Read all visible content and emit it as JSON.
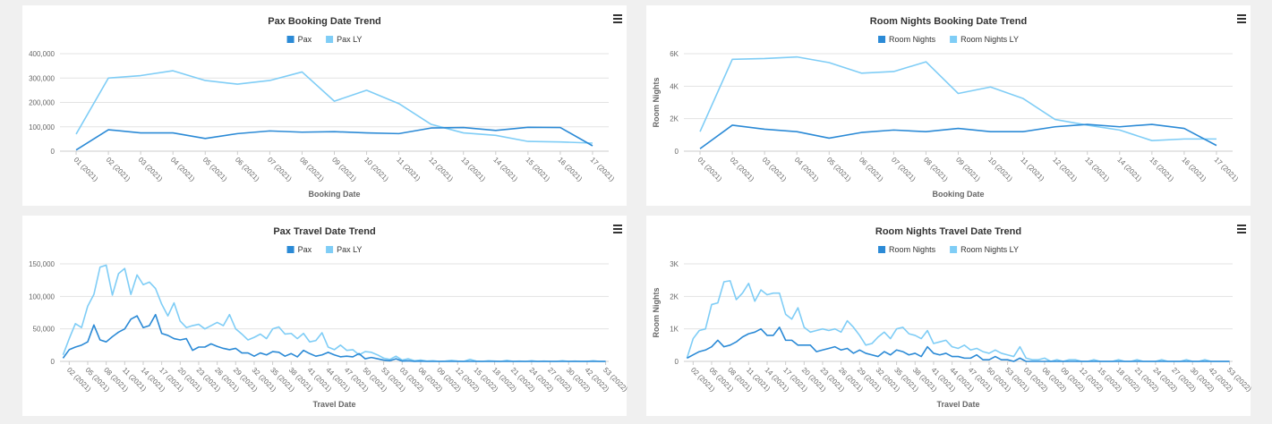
{
  "chart_data": [
    {
      "type": "line",
      "title": "Pax Booking Date Trend",
      "xlabel": "Booking Date",
      "categories": [
        "01 (2021)",
        "02 (2021)",
        "03 (2021)",
        "04 (2021)",
        "05 (2021)",
        "06 (2021)",
        "07 (2021)",
        "08 (2021)",
        "09 (2021)",
        "10 (2021)",
        "11 (2021)",
        "12 (2021)",
        "13 (2021)",
        "14 (2021)",
        "15 (2021)",
        "16 (2021)",
        "17 (2021)"
      ],
      "series": [
        {
          "name": "Pax",
          "color": "#2b8ad6",
          "values": [
            5000,
            88000,
            75000,
            75000,
            52000,
            72000,
            83000,
            78000,
            80000,
            75000,
            72000,
            95000,
            97000,
            85000,
            98000,
            97000,
            22000
          ]
        },
        {
          "name": "Pax LY",
          "color": "#7fcdf6",
          "values": [
            70000,
            300000,
            310000,
            330000,
            290000,
            275000,
            290000,
            325000,
            205000,
            250000,
            195000,
            110000,
            75000,
            65000,
            40000,
            38000,
            33000
          ]
        }
      ],
      "ylim": [
        0,
        400000
      ],
      "yticks": [
        0,
        {
          "value": 100000,
          "label": "100,000"
        },
        {
          "value": 200000,
          "label": "200,000"
        },
        {
          "value": 300000,
          "label": "300,000"
        },
        {
          "value": 400000,
          "label": "400,000"
        }
      ]
    },
    {
      "type": "line",
      "title": "Room Nights Booking Date Trend",
      "xlabel": "Booking Date",
      "ylabel": "Room Nights",
      "categories": [
        "01 (2021)",
        "02 (2021)",
        "03 (2021)",
        "04 (2021)",
        "05 (2021)",
        "06 (2021)",
        "07 (2021)",
        "08 (2021)",
        "09 (2021)",
        "10 (2021)",
        "11 (2021)",
        "12 (2021)",
        "13 (2021)",
        "14 (2021)",
        "15 (2021)",
        "16 (2021)",
        "17 (2021)"
      ],
      "series": [
        {
          "name": "Room Nights",
          "color": "#2b8ad6",
          "values": [
            150,
            1600,
            1350,
            1200,
            800,
            1150,
            1300,
            1200,
            1400,
            1200,
            1200,
            1500,
            1650,
            1500,
            1650,
            1400,
            350
          ]
        },
        {
          "name": "Room Nights LY",
          "color": "#7fcdf6",
          "values": [
            1200,
            5650,
            5700,
            5800,
            5450,
            4800,
            4900,
            5500,
            3550,
            3950,
            3250,
            1950,
            1600,
            1300,
            650,
            750,
            750
          ]
        }
      ],
      "ylim": [
        0,
        6000
      ],
      "yticks": [
        0,
        {
          "value": 2000,
          "label": "2K"
        },
        {
          "value": 4000,
          "label": "4K"
        },
        {
          "value": 6000,
          "label": "6K"
        }
      ]
    },
    {
      "type": "line",
      "title": "Pax Travel Date Trend",
      "xlabel": "Travel Date",
      "categories": [
        null,
        "02 (2021)",
        null,
        null,
        "05 (2021)",
        null,
        null,
        "08 (2021)",
        null,
        null,
        "11 (2021)",
        null,
        null,
        "14 (2021)",
        null,
        null,
        "17 (2021)",
        null,
        null,
        "20 (2021)",
        null,
        null,
        "23 (2021)",
        null,
        null,
        "26 (2021)",
        null,
        null,
        "29 (2021)",
        null,
        null,
        "32 (2021)",
        null,
        null,
        "35 (2021)",
        null,
        null,
        "38 (2021)",
        null,
        null,
        "41 (2021)",
        null,
        null,
        "44 (2021)",
        null,
        null,
        "47 (2021)",
        null,
        null,
        "50 (2021)",
        null,
        null,
        "53 (2021)",
        null,
        null,
        "03 (2022)",
        null,
        null,
        "06 (2022)",
        null,
        null,
        "09 (2022)",
        null,
        null,
        "12 (2022)",
        null,
        null,
        "15 (2022)",
        null,
        null,
        "18 (2022)",
        null,
        null,
        "21 (2022)",
        null,
        null,
        "24 (2022)",
        null,
        null,
        "27 (2022)",
        null,
        null,
        "30 (2022)",
        null,
        null,
        "42 (2022)",
        null,
        null,
        "53 (2022)"
      ],
      "series": [
        {
          "name": "Pax",
          "color": "#2b8ad6",
          "values": [
            5000,
            18000,
            22000,
            25000,
            30000,
            56000,
            33000,
            30000,
            38000,
            45000,
            50000,
            65000,
            70000,
            52000,
            55000,
            72000,
            43000,
            40000,
            35000,
            33000,
            35000,
            17000,
            22000,
            22000,
            27000,
            23000,
            20000,
            18000,
            20000,
            13000,
            13000,
            8000,
            13000,
            10000,
            15000,
            14000,
            8000,
            12000,
            7000,
            17000,
            12000,
            8000,
            10000,
            14000,
            10000,
            7000,
            8000,
            7000,
            12000,
            4000,
            6000,
            4000,
            2000,
            1000,
            4000,
            500,
            1000,
            0,
            500,
            0,
            0,
            0,
            0,
            0,
            0,
            0,
            0,
            0,
            0,
            0,
            0,
            0,
            0,
            0,
            0,
            0,
            0,
            0,
            0,
            0,
            0,
            0,
            0,
            0,
            0,
            0,
            0,
            0,
            0
          ]
        },
        {
          "name": "Pax LY",
          "color": "#7fcdf6",
          "values": [
            10000,
            35000,
            58000,
            52000,
            85000,
            103000,
            145000,
            148000,
            102000,
            135000,
            143000,
            103000,
            133000,
            118000,
            122000,
            112000,
            88000,
            70000,
            90000,
            62000,
            52000,
            55000,
            57000,
            50000,
            55000,
            60000,
            55000,
            72000,
            50000,
            42000,
            33000,
            37000,
            42000,
            35000,
            50000,
            53000,
            42000,
            43000,
            35000,
            43000,
            30000,
            32000,
            44000,
            22000,
            18000,
            25000,
            17000,
            18000,
            10000,
            15000,
            14000,
            10000,
            5000,
            3000,
            8000,
            2000,
            4000,
            1000,
            2000,
            500,
            1000,
            0,
            500,
            1500,
            500,
            0,
            3000,
            500,
            0,
            1000,
            500,
            0,
            1500,
            0,
            500,
            0,
            1000,
            0,
            500,
            0,
            0,
            1000,
            0,
            500,
            0,
            0,
            1000,
            0,
            0
          ]
        }
      ],
      "ylim": [
        0,
        150000
      ],
      "yticks": [
        0,
        {
          "value": 50000,
          "label": "50,000"
        },
        {
          "value": 100000,
          "label": "100,000"
        },
        {
          "value": 150000,
          "label": "150,000"
        }
      ]
    },
    {
      "type": "line",
      "title": "Room Nights Travel Date Trend",
      "xlabel": "Travel Date",
      "ylabel": "Room Nights",
      "categories": [
        null,
        "02 (2021)",
        null,
        null,
        "05 (2021)",
        null,
        null,
        "08 (2021)",
        null,
        null,
        "11 (2021)",
        null,
        null,
        "14 (2021)",
        null,
        null,
        "17 (2021)",
        null,
        null,
        "20 (2021)",
        null,
        null,
        "23 (2021)",
        null,
        null,
        "26 (2021)",
        null,
        null,
        "29 (2021)",
        null,
        null,
        "32 (2021)",
        null,
        null,
        "35 (2021)",
        null,
        null,
        "38 (2021)",
        null,
        null,
        "41 (2021)",
        null,
        null,
        "44 (2021)",
        null,
        null,
        "47 (2021)",
        null,
        null,
        "50 (2021)",
        null,
        null,
        "53 (2021)",
        null,
        null,
        "03 (2022)",
        null,
        null,
        "06 (2022)",
        null,
        null,
        "09 (2022)",
        null,
        null,
        "12 (2022)",
        null,
        null,
        "15 (2022)",
        null,
        null,
        "18 (2022)",
        null,
        null,
        "21 (2022)",
        null,
        null,
        "24 (2022)",
        null,
        null,
        "27 (2022)",
        null,
        null,
        "30 (2022)",
        null,
        null,
        "42 (2022)",
        null,
        null,
        "53 (2022)"
      ],
      "series": [
        {
          "name": "Room Nights",
          "color": "#2b8ad6",
          "values": [
            100,
            200,
            300,
            350,
            450,
            650,
            450,
            500,
            600,
            750,
            850,
            900,
            1000,
            800,
            800,
            1050,
            650,
            650,
            500,
            500,
            500,
            300,
            350,
            400,
            450,
            350,
            400,
            250,
            350,
            250,
            200,
            150,
            300,
            200,
            350,
            300,
            200,
            250,
            150,
            450,
            250,
            200,
            250,
            150,
            150,
            100,
            100,
            200,
            50,
            50,
            150,
            50,
            50,
            0,
            100,
            0,
            0,
            0,
            0,
            0,
            0,
            0,
            0,
            0,
            0,
            0,
            0,
            0,
            0,
            0,
            0,
            0,
            0,
            0,
            0,
            0,
            0,
            0,
            0,
            0,
            0,
            0,
            0,
            0,
            0,
            0,
            0,
            0,
            0
          ]
        },
        {
          "name": "Room Nights LY",
          "color": "#7fcdf6",
          "values": [
            100,
            700,
            950,
            1000,
            1750,
            1800,
            2450,
            2480,
            1900,
            2100,
            2400,
            1850,
            2200,
            2050,
            2100,
            2100,
            1450,
            1300,
            1650,
            1050,
            900,
            950,
            1000,
            950,
            1000,
            900,
            1250,
            1050,
            800,
            500,
            550,
            750,
            900,
            700,
            1000,
            1050,
            850,
            800,
            700,
            950,
            550,
            600,
            650,
            450,
            400,
            500,
            350,
            400,
            300,
            250,
            350,
            250,
            200,
            150,
            450,
            100,
            50,
            50,
            100,
            0,
            50,
            0,
            50,
            50,
            0,
            0,
            50,
            0,
            0,
            0,
            50,
            0,
            0,
            50,
            0,
            0,
            0,
            50,
            0,
            0,
            0,
            50,
            0,
            0,
            50,
            0,
            0,
            0,
            0
          ]
        }
      ],
      "ylim": [
        0,
        3000
      ],
      "yticks": [
        0,
        {
          "value": 1000,
          "label": "1K"
        },
        {
          "value": 2000,
          "label": "2K"
        },
        {
          "value": 3000,
          "label": "3K"
        }
      ]
    }
  ]
}
